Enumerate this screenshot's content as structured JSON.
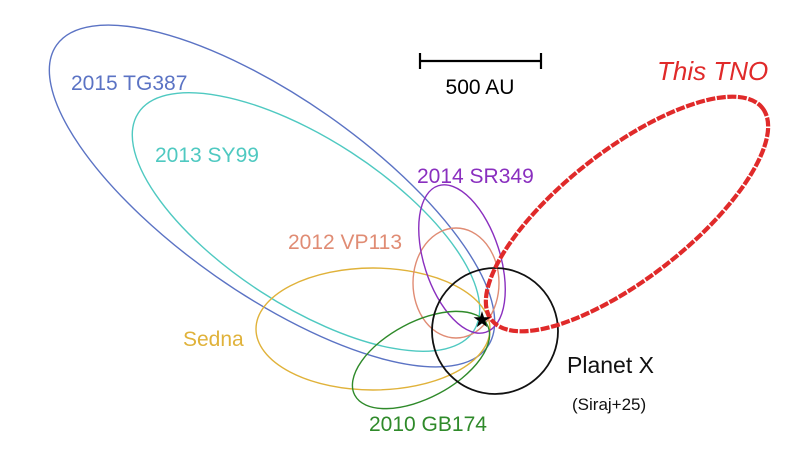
{
  "scale_bar": {
    "label": "500 AU"
  },
  "central_star": {
    "symbol": "★"
  },
  "orbits": [
    {
      "id": "tg387",
      "label": "2015 TG387",
      "color": "#5b73c4"
    },
    {
      "id": "sy99",
      "label": "2013 SY99",
      "color": "#4fc9c1"
    },
    {
      "id": "sr349",
      "label": "2014 SR349",
      "color": "#8a2fbf"
    },
    {
      "id": "vp113",
      "label": "2012 VP113",
      "color": "#e08c74"
    },
    {
      "id": "sedna",
      "label": "Sedna",
      "color": "#e0b23a"
    },
    {
      "id": "gb174",
      "label": "2010 GB174",
      "color": "#2f8a2a"
    },
    {
      "id": "tno",
      "label": "This TNO",
      "color": "#e02a2a"
    }
  ],
  "planet_x": {
    "label": "Planet X",
    "citation": "(Siraj+25)",
    "color": "#111111"
  }
}
